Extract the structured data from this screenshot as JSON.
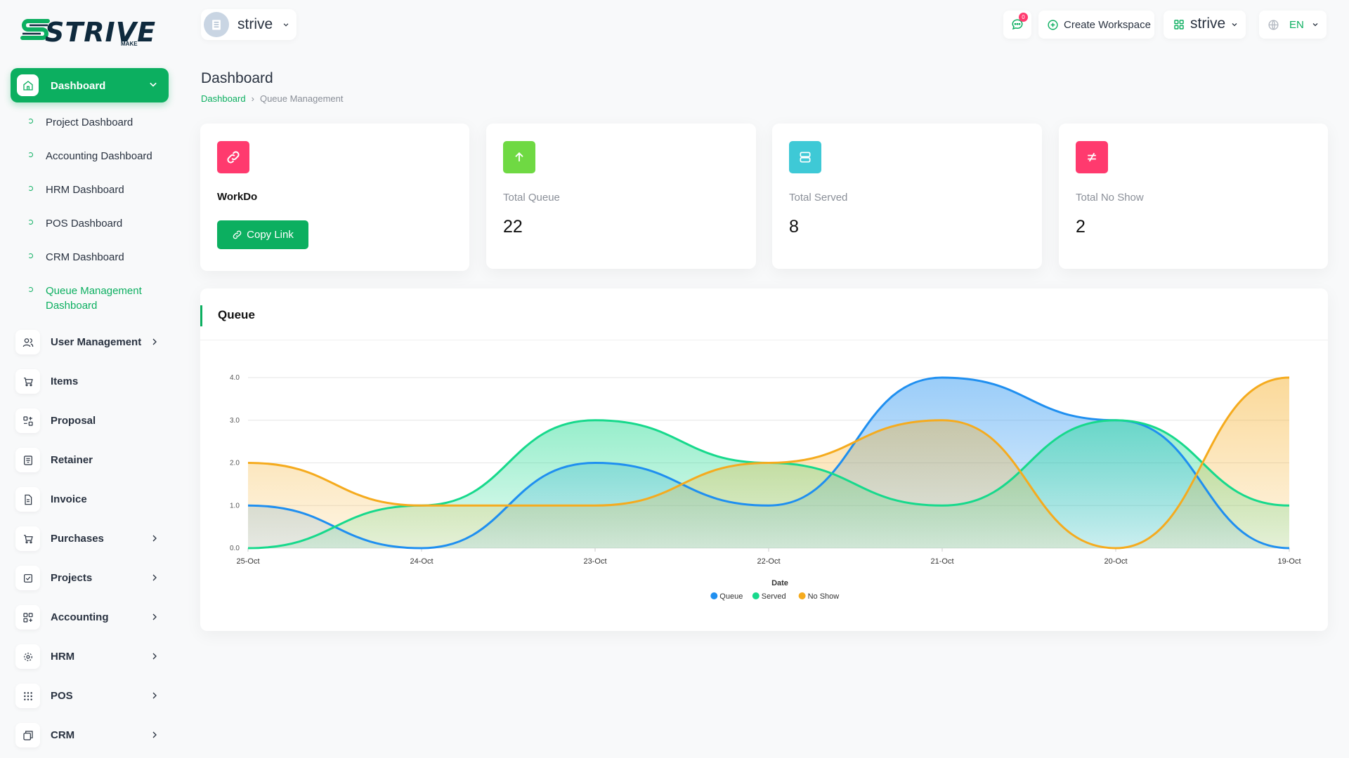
{
  "app": {
    "logo_text": "STRIVE",
    "logo_sub": "MAKE"
  },
  "sidebar": {
    "main": {
      "label": "Dashboard"
    },
    "sub_items": [
      {
        "label": "Project Dashboard"
      },
      {
        "label": "Accounting Dashboard"
      },
      {
        "label": "HRM Dashboard"
      },
      {
        "label": "POS Dashboard"
      },
      {
        "label": "CRM Dashboard"
      },
      {
        "label": "Queue Management",
        "label2": "Dashboard"
      }
    ],
    "items": [
      {
        "label": "User Management",
        "icon": "users-icon"
      },
      {
        "label": "Items",
        "icon": "cart-icon"
      },
      {
        "label": "Proposal",
        "icon": "proposal-icon"
      },
      {
        "label": "Retainer",
        "icon": "retainer-icon"
      },
      {
        "label": "Invoice",
        "icon": "invoice-icon"
      },
      {
        "label": "Purchases",
        "icon": "cart-icon"
      },
      {
        "label": "Projects",
        "icon": "check-square-icon"
      },
      {
        "label": "Accounting",
        "icon": "grid-plus-icon"
      },
      {
        "label": "HRM",
        "icon": "hrm-icon"
      },
      {
        "label": "POS",
        "icon": "dots-grid-icon"
      },
      {
        "label": "CRM",
        "icon": "crm-icon"
      }
    ]
  },
  "header": {
    "workspace": "strive",
    "messages_badge": "0",
    "create_workspace": "Create Workspace",
    "workspace_menu": "strive",
    "language": "EN"
  },
  "page": {
    "title": "Dashboard",
    "breadcrumb_home": "Dashboard",
    "breadcrumb_current": "Queue Management"
  },
  "cards": {
    "workdo": {
      "label": "WorkDo",
      "button": "Copy Link"
    },
    "total_queue": {
      "label": "Total Queue",
      "value": "22"
    },
    "total_served": {
      "label": "Total Served",
      "value": "8"
    },
    "total_no_show": {
      "label": "Total No Show",
      "value": "2"
    }
  },
  "colors": {
    "accent": "#0caf60",
    "pink": "#ff3a6e",
    "lime": "#6fd943",
    "teal": "#3ec9d6"
  },
  "chart_title": "Queue",
  "chart_data": {
    "type": "area",
    "xlabel": "Date",
    "ylabel": "",
    "x": [
      "25-Oct",
      "24-Oct",
      "23-Oct",
      "22-Oct",
      "21-Oct",
      "20-Oct",
      "19-Oct"
    ],
    "ylim": [
      0,
      4
    ],
    "yticks": [
      "0.0",
      "1.0",
      "2.0",
      "3.0",
      "4.0"
    ],
    "legend_position": "bottom",
    "series": [
      {
        "name": "Queue",
        "color": "#1f8ff0",
        "values": [
          1,
          0,
          2,
          1,
          4,
          3,
          0
        ]
      },
      {
        "name": "Served",
        "color": "#17d98c",
        "values": [
          0,
          1,
          3,
          2,
          1,
          3,
          1
        ]
      },
      {
        "name": "No Show",
        "color": "#f5ab1e",
        "values": [
          2,
          1,
          1,
          2,
          3,
          0,
          4
        ]
      }
    ]
  }
}
